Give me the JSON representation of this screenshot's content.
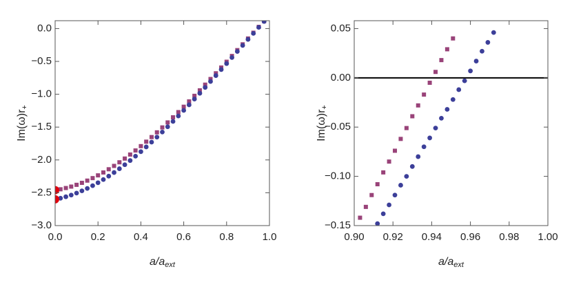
{
  "chart_data": [
    {
      "type": "scatter",
      "xlabel": [
        "a/a",
        "ext"
      ],
      "ylabel": [
        "Im(ω)r",
        "+"
      ],
      "xlim": [
        0,
        1
      ],
      "ylim": [
        -3,
        0.12
      ],
      "xticks": [
        {
          "value": 0,
          "label": "0.0"
        },
        0.2,
        0.4,
        0.6,
        0.8,
        {
          "value": 1,
          "label": "1.0"
        }
      ],
      "yticks": [
        {
          "value": 0,
          "label": "0.0"
        },
        {
          "value": -0.5,
          "label": "−0.5"
        },
        {
          "value": -1,
          "label": "−1.0"
        },
        {
          "value": -1.5,
          "label": "−1.5"
        },
        {
          "value": -2,
          "label": "−2.0"
        },
        {
          "value": -2.5,
          "label": "−2.5"
        },
        {
          "value": -3,
          "label": "−3.0"
        }
      ],
      "series": [
        {
          "color": "#994379",
          "marker": "square",
          "x": [
            0,
            0.025,
            0.05,
            0.075,
            0.1,
            0.125,
            0.15,
            0.175,
            0.2,
            0.225,
            0.25,
            0.275,
            0.3,
            0.325,
            0.35,
            0.375,
            0.4,
            0.425,
            0.45,
            0.475,
            0.5,
            0.525,
            0.55,
            0.575,
            0.6,
            0.625,
            0.65,
            0.675,
            0.7,
            0.725,
            0.75,
            0.775,
            0.8,
            0.825,
            0.85,
            0.875,
            0.9,
            0.925,
            0.95,
            0.975
          ],
          "values": [
            -2.46,
            -2.447,
            -2.428,
            -2.406,
            -2.379,
            -2.349,
            -2.315,
            -2.277,
            -2.235,
            -2.191,
            -2.142,
            -2.091,
            -2.036,
            -1.979,
            -1.918,
            -1.856,
            -1.79,
            -1.722,
            -1.652,
            -1.58,
            -1.505,
            -1.429,
            -1.351,
            -1.272,
            -1.19,
            -1.109,
            -1.024,
            -0.94,
            -0.854,
            -0.768,
            -0.681,
            -0.593,
            -0.505,
            -0.417,
            -0.328,
            -0.24,
            -0.151,
            -0.063,
            0.026,
            0.113
          ]
        },
        {
          "color": "#3c3f99",
          "marker": "circle",
          "x": [
            0,
            0.025,
            0.05,
            0.075,
            0.1,
            0.125,
            0.15,
            0.175,
            0.2,
            0.225,
            0.25,
            0.275,
            0.3,
            0.325,
            0.35,
            0.375,
            0.4,
            0.425,
            0.45,
            0.475,
            0.5,
            0.525,
            0.55,
            0.575,
            0.6,
            0.625,
            0.65,
            0.675,
            0.7,
            0.725,
            0.75,
            0.775,
            0.8,
            0.825,
            0.85,
            0.875,
            0.9,
            0.925,
            0.95,
            0.975
          ],
          "values": [
            -2.6,
            -2.583,
            -2.561,
            -2.535,
            -2.505,
            -2.471,
            -2.434,
            -2.392,
            -2.347,
            -2.299,
            -2.247,
            -2.192,
            -2.134,
            -2.073,
            -2.009,
            -1.943,
            -1.874,
            -1.802,
            -1.729,
            -1.653,
            -1.575,
            -1.495,
            -1.414,
            -1.331,
            -1.246,
            -1.161,
            -1.073,
            -0.985,
            -0.896,
            -0.806,
            -0.716,
            -0.624,
            -0.533,
            -0.441,
            -0.349,
            -0.257,
            -0.165,
            -0.073,
            0.019,
            0.109
          ]
        },
        {
          "color": "#e2000c",
          "marker": "big-circle",
          "x": [
            0,
            0
          ],
          "values": [
            -2.46,
            -2.6
          ]
        }
      ]
    },
    {
      "type": "scatter",
      "xlabel": [
        "a/a",
        "ext"
      ],
      "ylabel": [
        "Im(ω)r",
        "+"
      ],
      "xlim": [
        0.9,
        1
      ],
      "ylim": [
        -0.15,
        0.058
      ],
      "hline": 0,
      "xticks": [
        {
          "value": 0.9,
          "label": "0.90"
        },
        {
          "value": 0.92,
          "label": "0.92"
        },
        {
          "value": 0.94,
          "label": "0.94"
        },
        {
          "value": 0.96,
          "label": "0.96"
        },
        {
          "value": 0.98,
          "label": "0.98"
        },
        {
          "value": 1,
          "label": "1.00"
        }
      ],
      "yticks": [
        {
          "value": 0.05,
          "label": "0.05"
        },
        {
          "value": 0,
          "label": "0.00"
        },
        {
          "value": -0.05,
          "label": "−0.05"
        },
        {
          "value": -0.1,
          "label": "−0.10"
        },
        {
          "value": -0.15,
          "label": "−0.15"
        }
      ],
      "series": [
        {
          "color": "#994379",
          "marker": "square",
          "x": [
            0.903,
            0.906,
            0.909,
            0.912,
            0.915,
            0.918,
            0.921,
            0.924,
            0.927,
            0.93,
            0.933,
            0.936,
            0.939,
            0.942,
            0.945,
            0.948,
            0.951
          ],
          "values": [
            -0.142,
            -0.131,
            -0.119,
            -0.108,
            -0.096,
            -0.085,
            -0.074,
            -0.062,
            -0.051,
            -0.039,
            -0.028,
            -0.017,
            -0.005,
            0.006,
            0.018,
            0.029,
            0.04
          ]
        },
        {
          "color": "#3c3f99",
          "marker": "circle",
          "x": [
            0.912,
            0.915,
            0.918,
            0.921,
            0.924,
            0.927,
            0.93,
            0.933,
            0.936,
            0.939,
            0.942,
            0.945,
            0.948,
            0.951,
            0.954,
            0.957,
            0.96,
            0.963,
            0.966,
            0.969,
            0.972
          ],
          "values": [
            -0.148,
            -0.138,
            -0.129,
            -0.119,
            -0.109,
            -0.1,
            -0.09,
            -0.08,
            -0.07,
            -0.061,
            -0.051,
            -0.041,
            -0.032,
            -0.022,
            -0.012,
            -0.003,
            0.007,
            0.017,
            0.027,
            0.036,
            0.046
          ]
        }
      ]
    }
  ]
}
